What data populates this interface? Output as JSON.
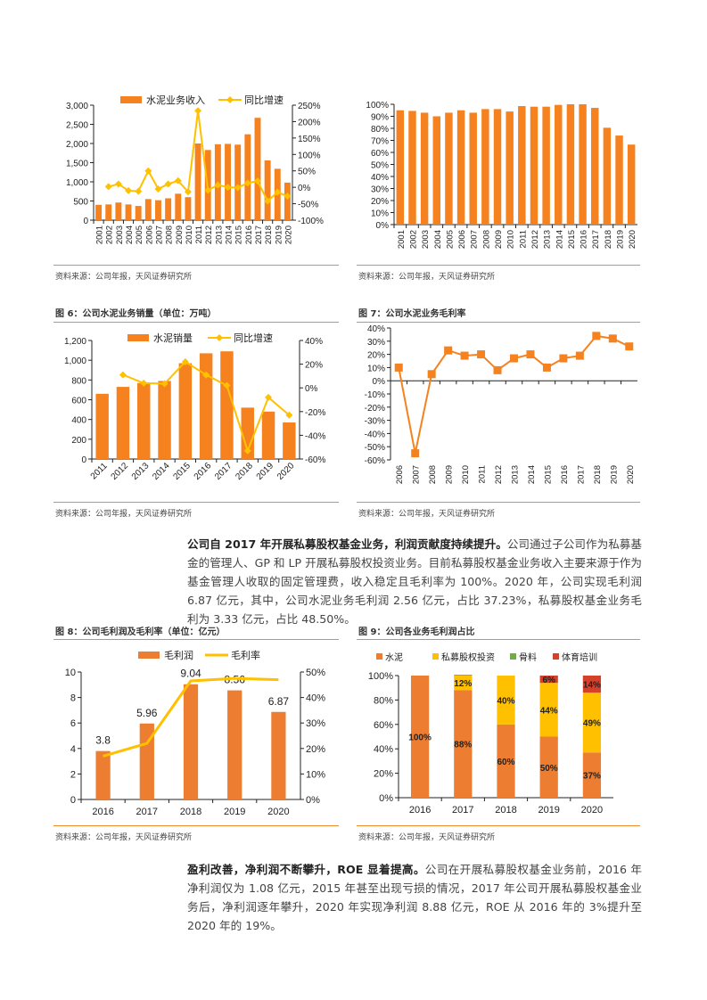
{
  "figures": {
    "fig4": {
      "source": "资料来源：公司年报，天风证券研究所"
    },
    "fig5": {
      "source": "资料来源：公司年报，天风证券研究所"
    },
    "fig6": {
      "title": "图 6：公司水泥业务销量（单位：万吨）",
      "source": "资料来源：公司年报，天风证券研究所"
    },
    "fig7": {
      "title": "图 7：公司水泥业务毛利率",
      "source": "资料来源：公司年报，天风证券研究所"
    },
    "fig8": {
      "title": "图 8：公司毛利润及毛利率（单位：亿元）",
      "source": "资料来源：公司年报，天风证券研究所"
    },
    "fig9": {
      "title": "图 9：公司各业务毛利润占比",
      "source": "资料来源：公司年报，天风证券研究所"
    }
  },
  "paragraphs": [
    {
      "bold": "公司自 2017 年开展私募股权基金业务，利润贡献度持续提升。",
      "text": "公司通过子公司作为私募基金的管理人、GP 和 LP 开展私募股权投资业务。目前私募股权基金业务收入主要来源于作为基金管理人收取的固定管理费，收入稳定且毛利率为 100%。2020 年，公司实现毛利润 6.87 亿元，其中，公司水泥业务毛利润 2.56 亿元，占比 37.23%，私募股权基金业务毛利为 3.33 亿元，占比 48.50%。"
    },
    {
      "bold": "盈利改善，净利润不断攀升，ROE 显着提高。",
      "text": "公司在开展私募股权基金业务前，2016 年净利润仅为 1.08 亿元，2015 年甚至出现亏损的情况，2017 年公司开展私募股权基金业务后，净利润逐年攀升，2020 年实现净利润 8.88 亿元，ROE 从 2016 年的 3%提升至 2020 年的 19%。"
    }
  ],
  "chart_data": [
    {
      "type": "bar+line",
      "categories": [
        "2001",
        "2002",
        "2003",
        "2004",
        "2005",
        "2006",
        "2007",
        "2008",
        "2009",
        "2010",
        "2011",
        "2012",
        "2013",
        "2014",
        "2015",
        "2016",
        "2017",
        "2018",
        "2019",
        "2020"
      ],
      "series": [
        {
          "name": "水泥业务收入",
          "type": "bar",
          "axis": "left",
          "color": "#F5821F",
          "values": [
            400,
            410,
            460,
            410,
            370,
            550,
            520,
            570,
            690,
            600,
            2000,
            1830,
            1980,
            1990,
            1970,
            2240,
            2670,
            1560,
            1340,
            980
          ]
        },
        {
          "name": "同比增速",
          "type": "line",
          "axis": "right",
          "color": "#FFC000",
          "marker": "diamond",
          "values": [
            null,
            2,
            10,
            -10,
            -12,
            50,
            -5,
            10,
            20,
            -14,
            233,
            -9,
            7,
            0,
            -1,
            13,
            19,
            -42,
            -15,
            -27
          ]
        }
      ],
      "ylim": [
        0,
        3000
      ],
      "yticks": [
        "0",
        "500",
        "1,000",
        "1,500",
        "2,000",
        "2,500",
        "3,000"
      ],
      "y2lim": [
        -100,
        250
      ],
      "y2ticks": [
        "-100%",
        "-50%",
        "0%",
        "50%",
        "100%",
        "150%",
        "200%",
        "250%"
      ],
      "legend": "top"
    },
    {
      "type": "bar",
      "categories": [
        "2001",
        "2002",
        "2003",
        "2004",
        "2005",
        "2006",
        "2007",
        "2008",
        "2009",
        "2010",
        "2011",
        "2012",
        "2013",
        "2014",
        "2015",
        "2016",
        "2017",
        "2018",
        "2019",
        "2020"
      ],
      "series": [
        {
          "type": "bar",
          "color": "#F5821F",
          "values": [
            95,
            94.5,
            93,
            90,
            93,
            95,
            93,
            96,
            96,
            94,
            98.5,
            98,
            98,
            99.5,
            100,
            100,
            97,
            80.5,
            74,
            66.5
          ]
        }
      ],
      "ylim": [
        0,
        100
      ],
      "yticks": [
        "0%",
        "10%",
        "20%",
        "30%",
        "40%",
        "50%",
        "60%",
        "70%",
        "80%",
        "90%",
        "100%"
      ]
    },
    {
      "type": "bar+line",
      "categories": [
        "2011",
        "2012",
        "2013",
        "2014",
        "2015",
        "2016",
        "2017",
        "2018",
        "2019",
        "2020"
      ],
      "series": [
        {
          "name": "水泥销量",
          "type": "bar",
          "axis": "left",
          "color": "#F5821F",
          "values": [
            660,
            730,
            770,
            790,
            970,
            1070,
            1090,
            520,
            480,
            370
          ]
        },
        {
          "name": "同比增速",
          "type": "line",
          "axis": "right",
          "color": "#FFC000",
          "marker": "diamond",
          "values": [
            null,
            11,
            4,
            3.5,
            22,
            11,
            2,
            -53,
            -8,
            -23
          ]
        }
      ],
      "ylim": [
        0,
        1200
      ],
      "yticks": [
        "0",
        "200",
        "400",
        "600",
        "800",
        "1,000",
        "1,200"
      ],
      "y2lim": [
        -60,
        40
      ],
      "y2ticks": [
        "-60%",
        "-40%",
        "-20%",
        "0%",
        "20%",
        "40%"
      ],
      "legend": "top"
    },
    {
      "type": "line",
      "categories": [
        "2006",
        "2007",
        "2008",
        "2009",
        "2010",
        "2011",
        "2012",
        "2013",
        "2014",
        "2015",
        "2016",
        "2017",
        "2018",
        "2019",
        "2020"
      ],
      "series": [
        {
          "type": "line",
          "color": "#F5821F",
          "marker": "square",
          "values": [
            10,
            -55,
            5,
            23,
            19,
            20,
            8,
            17,
            20,
            10,
            17,
            19,
            34,
            32,
            26
          ]
        }
      ],
      "ylim": [
        -60,
        40
      ],
      "yticks": [
        "-60%",
        "-50%",
        "-40%",
        "-30%",
        "-20%",
        "-10%",
        "0%",
        "10%",
        "20%",
        "30%",
        "40%"
      ]
    },
    {
      "type": "bar+line",
      "categories": [
        "2016",
        "2017",
        "2018",
        "2019",
        "2020"
      ],
      "series": [
        {
          "name": "毛利润",
          "type": "bar",
          "axis": "left",
          "color": "#ED7D31",
          "values": [
            3.8,
            5.96,
            9.04,
            8.56,
            6.87
          ],
          "labels": [
            "3.8",
            "5.96",
            "9.04",
            "8.56",
            "6.87"
          ]
        },
        {
          "name": "毛利率",
          "type": "line",
          "axis": "right",
          "color": "#FFC000",
          "values": [
            17,
            22,
            46.5,
            47.5,
            47
          ]
        }
      ],
      "ylim": [
        0,
        10
      ],
      "yticks": [
        "0",
        "2",
        "4",
        "6",
        "8",
        "10"
      ],
      "y2lim": [
        0,
        50
      ],
      "y2ticks": [
        "0%",
        "10%",
        "20%",
        "30%",
        "40%",
        "50%"
      ],
      "legend": "top"
    },
    {
      "type": "stacked-bar",
      "categories": [
        "2016",
        "2017",
        "2018",
        "2019",
        "2020"
      ],
      "series": [
        {
          "name": "水泥",
          "color": "#ED7D31",
          "values": [
            100,
            88,
            60,
            50,
            37
          ],
          "labels": [
            "100%",
            "88%",
            "60%",
            "50%",
            "37%"
          ]
        },
        {
          "name": "私募股权投资",
          "color": "#FFC000",
          "values": [
            0,
            12,
            40,
            44,
            49
          ],
          "labels": [
            "",
            "12%",
            "40%",
            "44%",
            "49%"
          ]
        },
        {
          "name": "骨料",
          "color": "#70AD47",
          "values": [
            0,
            0,
            0,
            0,
            0
          ],
          "labels": [
            "",
            "",
            "",
            "",
            ""
          ]
        },
        {
          "name": "体育培训",
          "color": "#D5402A",
          "values": [
            0,
            0.5,
            0,
            6,
            14
          ],
          "labels": [
            "",
            "",
            "",
            "6%",
            "14%"
          ]
        }
      ],
      "ylim": [
        0,
        100
      ],
      "yticks": [
        "0%",
        "20%",
        "40%",
        "60%",
        "80%",
        "100%"
      ],
      "legend": "top"
    }
  ]
}
